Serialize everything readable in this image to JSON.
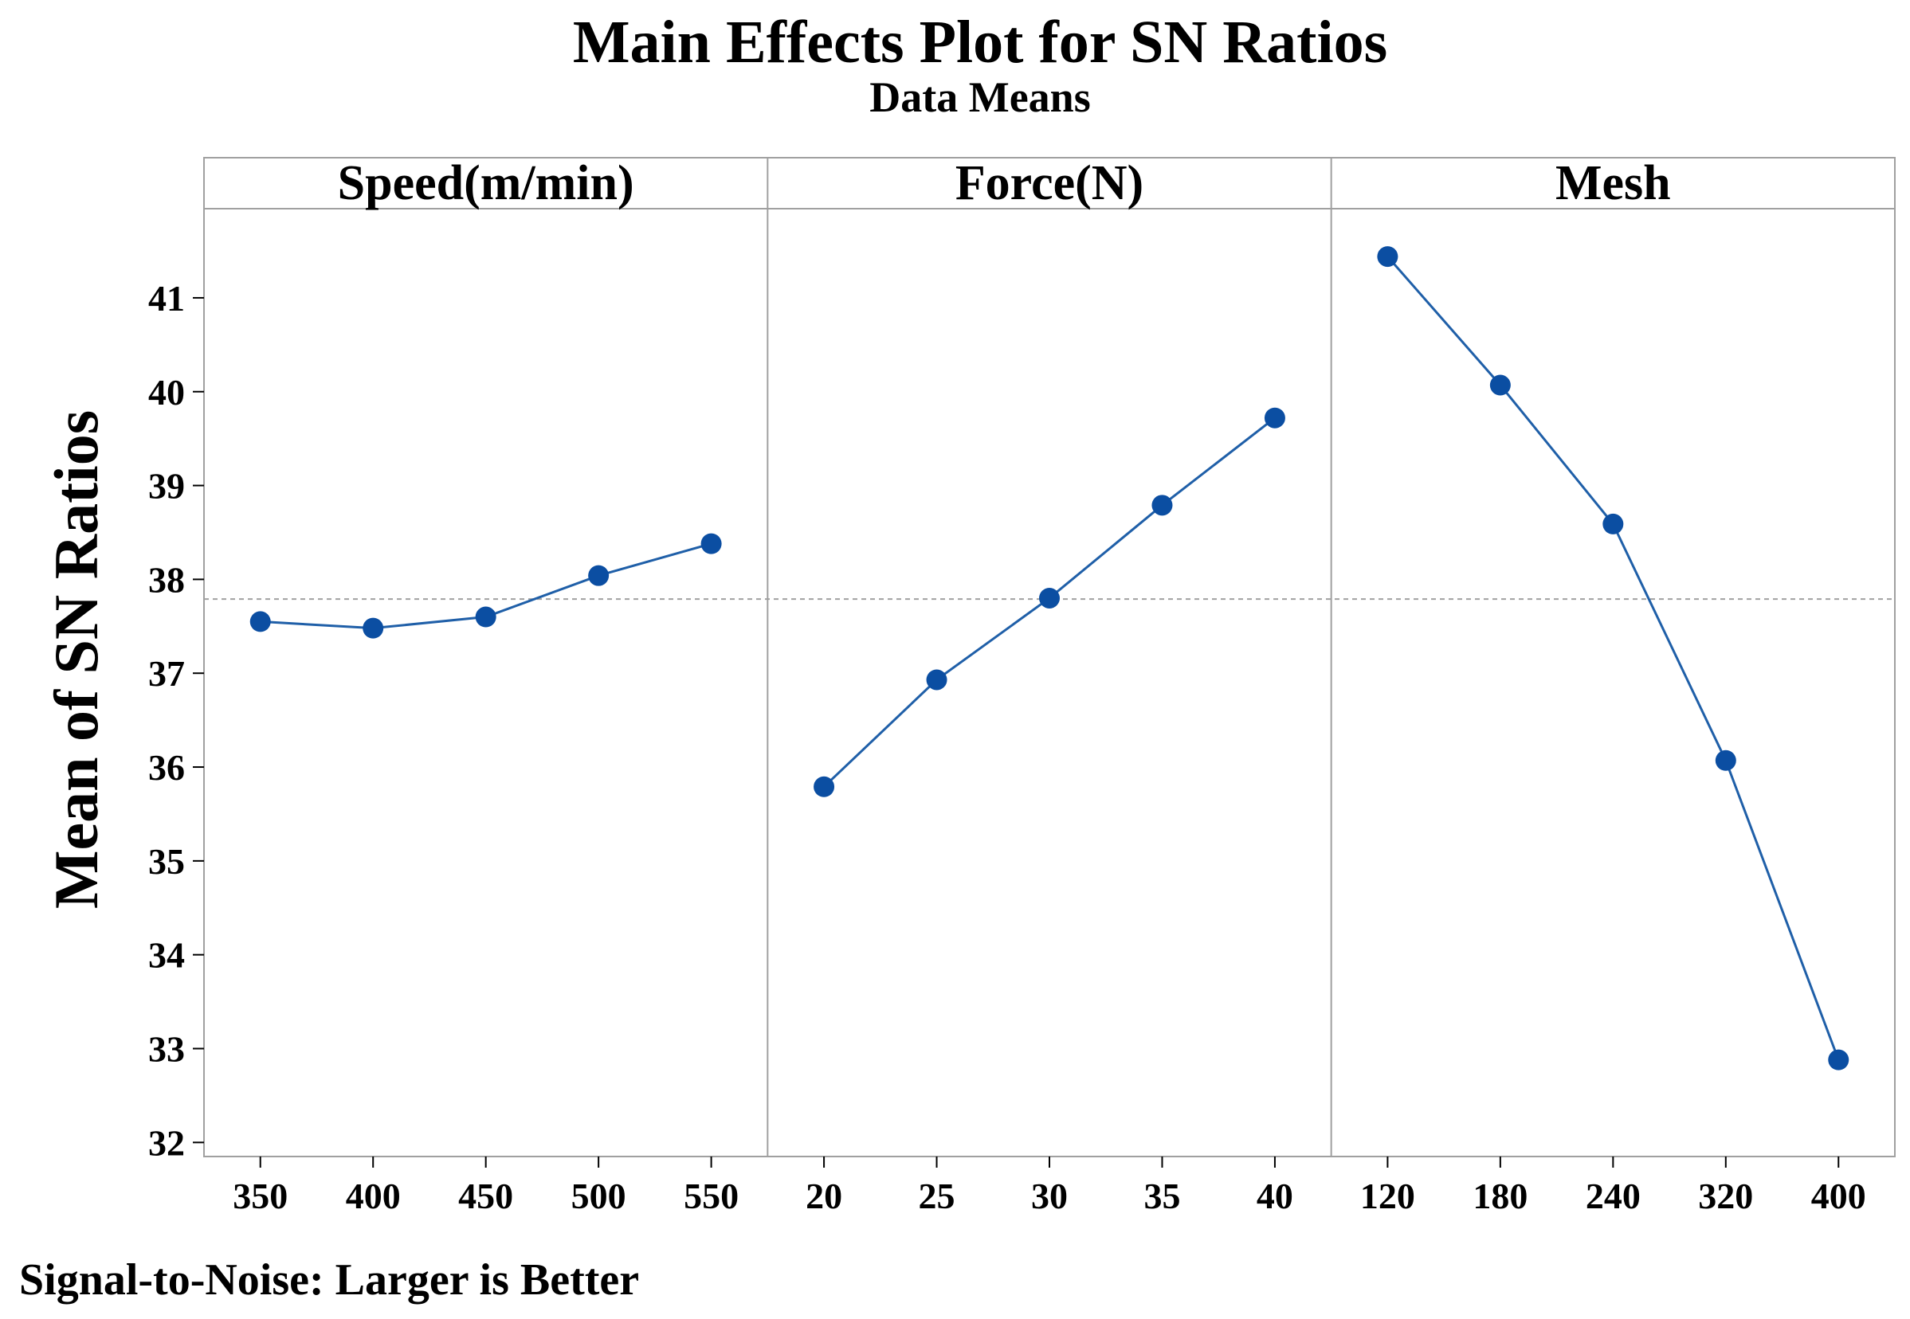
{
  "title": "Main Effects Plot for SN Ratios",
  "subtitle": "Data Means",
  "ylabel": "Mean of SN Ratios",
  "footnote": "Signal-to-Noise: Larger is Better",
  "colors": {
    "series": "#1f5fa8",
    "marker": "#0b4ea2",
    "frame": "#a0a0a0",
    "reference": "#a0a0a0",
    "text": "#000000"
  },
  "chart_data": {
    "type": "line",
    "title": "Main Effects Plot for SN Ratios",
    "subtitle": "Data Means",
    "ylabel": "Mean of SN Ratios",
    "ylim": [
      31.85,
      41.95
    ],
    "yticks": [
      32,
      33,
      34,
      35,
      36,
      37,
      38,
      39,
      40,
      41
    ],
    "reference_line": 37.79,
    "grid": false,
    "panels": [
      {
        "name": "Speed(m/min)",
        "categories": [
          "350",
          "400",
          "450",
          "500",
          "550"
        ],
        "values": [
          37.55,
          37.48,
          37.6,
          38.04,
          38.38
        ]
      },
      {
        "name": "Force(N)",
        "categories": [
          "20",
          "25",
          "30",
          "35",
          "40"
        ],
        "values": [
          35.79,
          36.93,
          37.8,
          38.79,
          39.72
        ]
      },
      {
        "name": "Mesh",
        "categories": [
          "120",
          "180",
          "240",
          "320",
          "400"
        ],
        "values": [
          41.44,
          40.07,
          38.59,
          36.07,
          32.88
        ]
      }
    ]
  }
}
